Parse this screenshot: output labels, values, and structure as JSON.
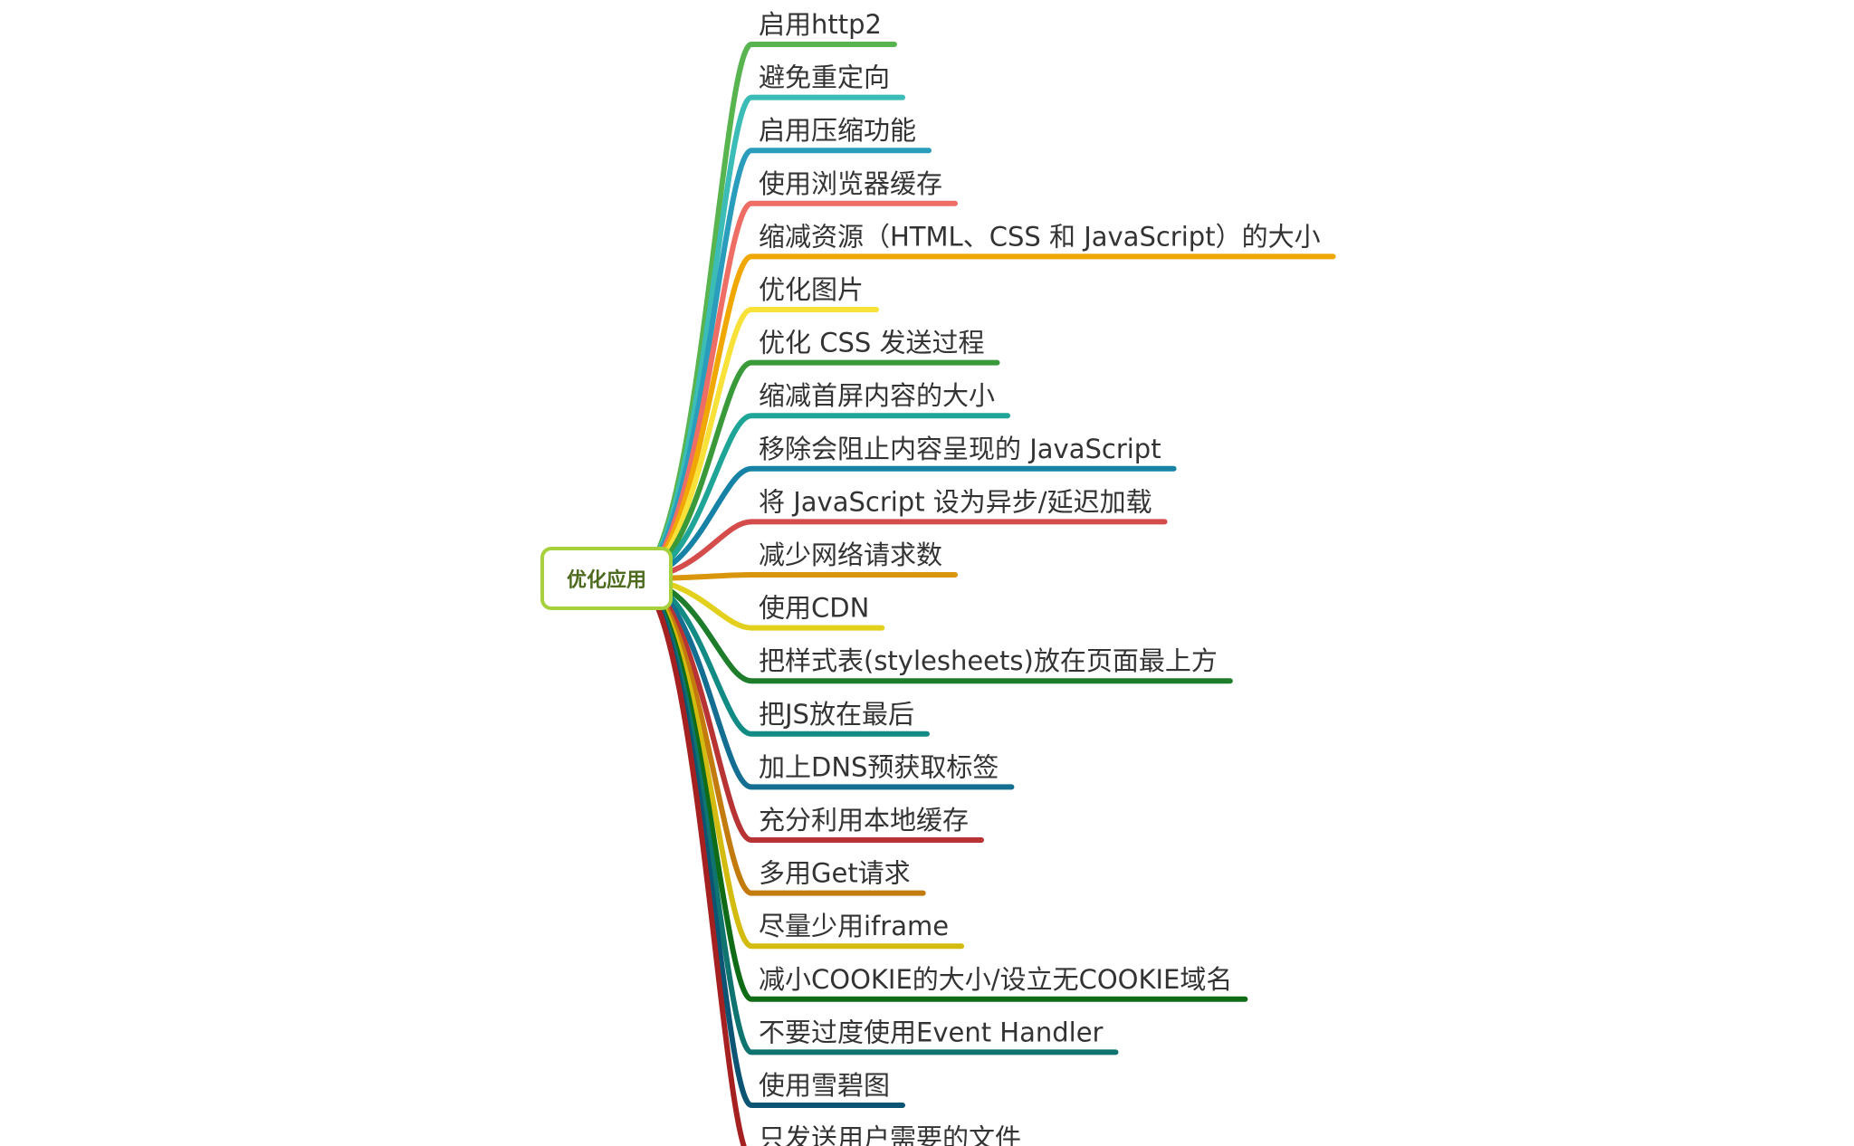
{
  "root": {
    "label": "优化应用"
  },
  "branches": [
    {
      "label": "启用http2",
      "color": "#57b44f"
    },
    {
      "label": "避免重定向",
      "color": "#3bbcb6"
    },
    {
      "label": "启用压缩功能",
      "color": "#2a9cbc"
    },
    {
      "label": "使用浏览器缓存",
      "color": "#ee6e66"
    },
    {
      "label": "缩减资源（HTML、CSS 和 JavaScript）的大小",
      "color": "#f0a800"
    },
    {
      "label": "优化图片",
      "color": "#f8e23a"
    },
    {
      "label": "优化 CSS 发送过程",
      "color": "#3a9a3a"
    },
    {
      "label": "缩减首屏内容的大小",
      "color": "#1fa597"
    },
    {
      "label": "移除会阻止内容呈现的 JavaScript",
      "color": "#1682a6"
    },
    {
      "label": "将 JavaScript 设为异步/延迟加载",
      "color": "#d44c4c"
    },
    {
      "label": "减少网络请求数",
      "color": "#d9950b"
    },
    {
      "label": "使用CDN",
      "color": "#e3d01c"
    },
    {
      "label": "把样式表(stylesheets)放在页面最上方",
      "color": "#1e7d2a"
    },
    {
      "label": "把JS放在最后",
      "color": "#138b85"
    },
    {
      "label": "加上DNS预获取标签",
      "color": "#136e92"
    },
    {
      "label": "充分利用本地缓存",
      "color": "#b83434"
    },
    {
      "label": "多用Get请求",
      "color": "#c27b0c"
    },
    {
      "label": "尽量少用iframe",
      "color": "#d4bb10"
    },
    {
      "label": "减小COOKIE的大小/设立无COOKIE域名",
      "color": "#106b16"
    },
    {
      "label": "不要过度使用Event Handler",
      "color": "#0f7470"
    },
    {
      "label": "使用雪碧图",
      "color": "#0c5473"
    },
    {
      "label": "只发送用户需要的文件",
      "color": "#a52121"
    }
  ]
}
